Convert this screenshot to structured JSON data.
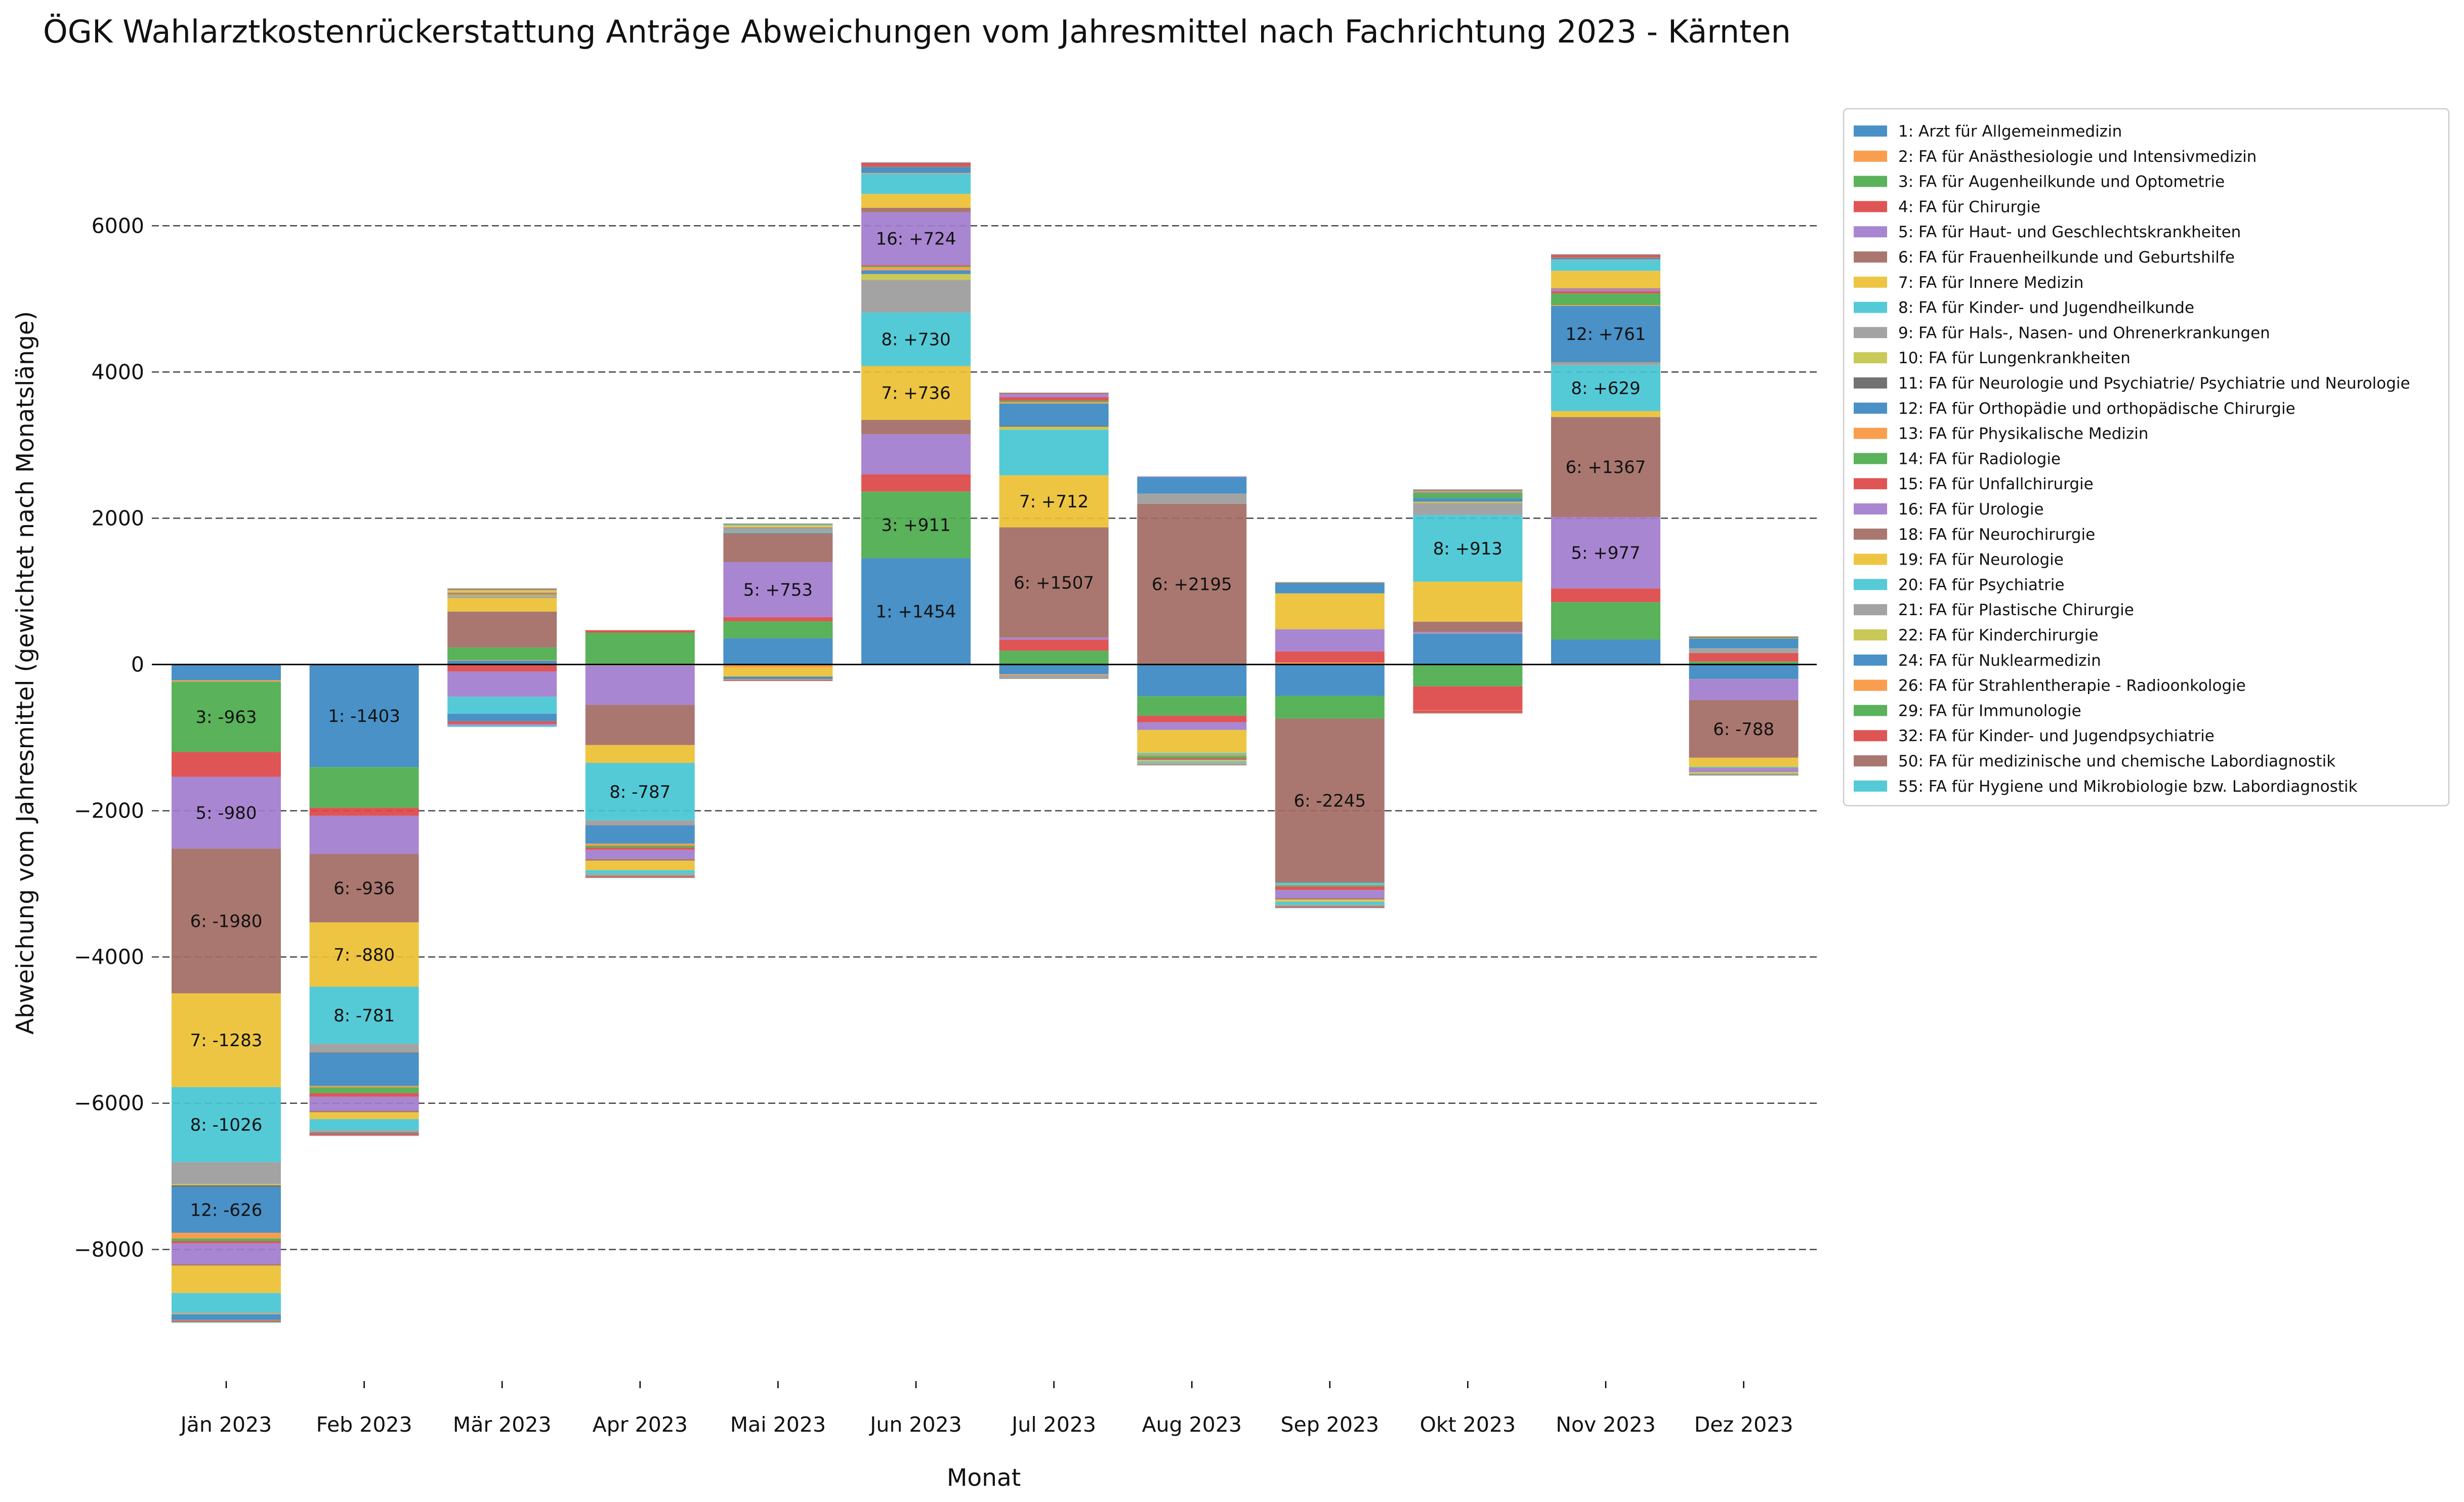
{
  "chart_data": {
    "type": "bar",
    "stacked": true,
    "title": "ÖGK Wahlarztkostenrückerstattung Anträge Abweichungen vom Jahresmittel nach Fachrichtung 2023 - Kärnten",
    "xlabel": "Monat",
    "ylabel": "Abweichung vom Jahresmittel (gewichtet nach Monatslänge)",
    "ylim": [
      -9800,
      7600
    ],
    "yticks": [
      -8000,
      -6000,
      -4000,
      -2000,
      0,
      2000,
      4000,
      6000
    ],
    "ytick_labels": [
      "−8000",
      "−6000",
      "−4000",
      "−2000",
      "0",
      "2000",
      "4000",
      "6000"
    ],
    "grid": "horizontal dashed",
    "legend_position": "upper right outside",
    "categories": [
      "Jän 2023",
      "Feb 2023",
      "Mär 2023",
      "Apr 2023",
      "Mai 2023",
      "Jun 2023",
      "Jul 2023",
      "Aug 2023",
      "Sep 2023",
      "Okt 2023",
      "Nov 2023",
      "Dez 2023"
    ],
    "series": [
      {
        "name": "1: Arzt für Allgemeinmedizin",
        "color": "#3a88c2",
        "values": [
          -216,
          -1403,
          52,
          -12,
          359,
          1454,
          -133,
          -434,
          -429,
          423,
          343,
          -199
        ]
      },
      {
        "name": "2: FA für Anästhesiologie und Intensivmedizin",
        "color": "#f8963f",
        "values": [
          -18,
          2,
          8,
          -4,
          -42,
          -5,
          -12,
          3,
          26,
          4,
          -6,
          -2
        ]
      },
      {
        "name": "3: FA für Augenheilkunde und Optometrie",
        "color": "#4cab4c",
        "values": [
          -963,
          -556,
          173,
          436,
          232,
          911,
          189,
          -266,
          -311,
          -299,
          510,
          39
        ]
      },
      {
        "name": "4: FA für Chirurgie",
        "color": "#dc4646",
        "values": [
          -340,
          -110,
          -96,
          34,
          57,
          236,
          151,
          -91,
          153,
          -326,
          187,
          118
        ]
      },
      {
        "name": "5: FA für Haut- und Geschlechtskrankheiten",
        "color": "#a27ccd",
        "values": [
          -980,
          -522,
          -345,
          -537,
          753,
          548,
          29,
          -104,
          304,
          18,
          977,
          -286
        ]
      },
      {
        "name": "6: FA für Frauenheilkunde und Geburtshilfe",
        "color": "#a26b63",
        "values": [
          -1980,
          -936,
          491,
          -549,
          399,
          197,
          1507,
          2195,
          -2245,
          141,
          1367,
          -788
        ]
      },
      {
        "name": "7: FA für Innere Medizin",
        "color": "#ecc032",
        "values": [
          -1283,
          -880,
          184,
          -244,
          -118,
          736,
          712,
          -316,
          488,
          546,
          81,
          -126
        ]
      },
      {
        "name": "8: FA für Kinder- und Jugendheilkunde",
        "color": "#47c6d4",
        "values": [
          -1026,
          -781,
          -232,
          -787,
          16,
          730,
          623,
          -20,
          -27,
          913,
          629,
          -12
        ]
      },
      {
        "name": "9: FA für Hals-, Nasen- und Ohrenerkrankungen",
        "color": "#9b9b9b",
        "values": [
          -300,
          -118,
          25,
          -66,
          49,
          446,
          -53,
          139,
          -9,
          162,
          41,
          58
        ]
      },
      {
        "name": "10: FA für Lungenkrankheiten",
        "color": "#c4c44a",
        "values": [
          -16,
          6,
          10,
          1,
          -6,
          83,
          41,
          -7,
          2,
          23,
          -7,
          4
        ]
      },
      {
        "name": "11: FA für Neurologie und Psychiatrie/ Psychiatrie und Neurologie",
        "color": "#666666",
        "values": [
          -24,
          -8,
          6,
          -5,
          -3,
          2,
          13,
          -6,
          -3,
          1,
          6,
          -4
        ]
      },
      {
        "name": "12: FA für Orthopädie und orthopädische Chirurgie",
        "color": "#3a88c2",
        "values": [
          -626,
          -449,
          -104,
          -246,
          -33,
          48,
          304,
          223,
          146,
          47,
          761,
          136
        ]
      },
      {
        "name": "13: FA für Physikalische Medizin",
        "color": "#f8963f",
        "values": [
          -78,
          -19,
          11,
          -27,
          -7,
          43,
          17,
          -8,
          10,
          -3,
          13,
          4
        ]
      },
      {
        "name": "14: FA für Radiologie",
        "color": "#4cab4c",
        "values": [
          -37,
          -80,
          6,
          -27,
          3,
          16,
          20,
          -28,
          -14,
          68,
          159,
          15
        ]
      },
      {
        "name": "15: FA für Unfallchirurgie",
        "color": "#dc4646",
        "values": [
          -29,
          -49,
          -38,
          -30,
          -6,
          12,
          50,
          -16,
          -46,
          -37,
          31,
          10
        ]
      },
      {
        "name": "16: FA für Urologie",
        "color": "#a27ccd",
        "values": [
          -286,
          -192,
          -19,
          -125,
          8,
          724,
          41,
          10,
          -112,
          3,
          30,
          -47
        ]
      },
      {
        "name": "18: FA für Neurochirurgie",
        "color": "#a26b63",
        "values": [
          -17,
          -20,
          16,
          -24,
          -12,
          60,
          20,
          -11,
          -18,
          6,
          10,
          -6
        ]
      },
      {
        "name": "19: FA für Neurologie",
        "color": "#ecc032",
        "values": [
          -376,
          -94,
          26,
          -130,
          27,
          190,
          0,
          -16,
          -28,
          -2,
          239,
          -17
        ]
      },
      {
        "name": "20: FA für Psychiatrie",
        "color": "#47c6d4",
        "values": [
          -265,
          -151,
          -19,
          -47,
          9,
          267,
          0,
          -21,
          -43,
          -5,
          141,
          -8
        ]
      },
      {
        "name": "21: FA für Plastische Chirurgie",
        "color": "#9b9b9b",
        "values": [
          -18,
          -16,
          8,
          -15,
          3,
          14,
          0,
          -14,
          -11,
          10,
          8,
          -6
        ]
      },
      {
        "name": "22: FA für Kinderchirurgie",
        "color": "#c4c44a",
        "values": [
          -8,
          -5,
          4,
          -5,
          2,
          5,
          0,
          -4,
          -4,
          5,
          5,
          -2
        ]
      },
      {
        "name": "24: FA für Nuklearmedizin",
        "color": "#3a88c2",
        "values": [
          -77,
          -15,
          3,
          -10,
          1,
          82,
          0,
          2,
          -8,
          3,
          25,
          -4
        ]
      },
      {
        "name": "26: FA für Strahlentherapie - Radioonkologie",
        "color": "#f8963f",
        "values": [
          -5,
          -3,
          2,
          -3,
          1,
          2,
          0,
          -2,
          -2,
          2,
          2,
          -1
        ]
      },
      {
        "name": "29: FA für Immunologie",
        "color": "#4cab4c",
        "values": [
          -5,
          -3,
          2,
          -3,
          1,
          2,
          0,
          -2,
          -2,
          2,
          2,
          -1
        ]
      },
      {
        "name": "32: FA für Kinder- und Jugendpsychiatrie",
        "color": "#dc4646",
        "values": [
          -13,
          -28,
          8,
          -15,
          4,
          48,
          0,
          -6,
          -13,
          11,
          35,
          -5
        ]
      },
      {
        "name": "50: FA für medizinische und chemische Labordiagnostik",
        "color": "#a26b63",
        "values": [
          -8,
          -5,
          4,
          -5,
          2,
          7,
          0,
          -4,
          -4,
          4,
          5,
          -2
        ]
      },
      {
        "name": "55: FA für Hygiene und Mikrobiologie bzw. Labordiagnostik",
        "color": "#47c6d4",
        "values": [
          -7,
          -5,
          3,
          -5,
          2,
          6,
          0,
          -4,
          -4,
          4,
          5,
          -2
        ]
      }
    ],
    "bar_labels": [
      {
        "month": 0,
        "series": 2,
        "text": "3: -963"
      },
      {
        "month": 0,
        "series": 4,
        "text": "5: -980"
      },
      {
        "month": 0,
        "series": 5,
        "text": "6: -1980"
      },
      {
        "month": 0,
        "series": 6,
        "text": "7: -1283"
      },
      {
        "month": 0,
        "series": 7,
        "text": "8: -1026"
      },
      {
        "month": 0,
        "series": 11,
        "text": "12: -626"
      },
      {
        "month": 1,
        "series": 0,
        "text": "1: -1403"
      },
      {
        "month": 1,
        "series": 5,
        "text": "6: -936"
      },
      {
        "month": 1,
        "series": 6,
        "text": "7: -880"
      },
      {
        "month": 1,
        "series": 7,
        "text": "8: -781"
      },
      {
        "month": 3,
        "series": 7,
        "text": "8: -787"
      },
      {
        "month": 4,
        "series": 4,
        "text": "5: +753"
      },
      {
        "month": 5,
        "series": 0,
        "text": "1: +1454"
      },
      {
        "month": 5,
        "series": 2,
        "text": "3: +911"
      },
      {
        "month": 5,
        "series": 6,
        "text": "7: +736"
      },
      {
        "month": 5,
        "series": 7,
        "text": "8: +730"
      },
      {
        "month": 5,
        "series": 15,
        "text": "16: +724"
      },
      {
        "month": 6,
        "series": 5,
        "text": "6: +1507"
      },
      {
        "month": 6,
        "series": 6,
        "text": "7: +712"
      },
      {
        "month": 7,
        "series": 5,
        "text": "6: +2195"
      },
      {
        "month": 8,
        "series": 5,
        "text": "6: -2245"
      },
      {
        "month": 9,
        "series": 7,
        "text": "8: +913"
      },
      {
        "month": 10,
        "series": 4,
        "text": "5: +977"
      },
      {
        "month": 10,
        "series": 5,
        "text": "6: +1367"
      },
      {
        "month": 10,
        "series": 7,
        "text": "8: +629"
      },
      {
        "month": 10,
        "series": 11,
        "text": "12: +761"
      },
      {
        "month": 11,
        "series": 5,
        "text": "6: -788"
      }
    ]
  }
}
